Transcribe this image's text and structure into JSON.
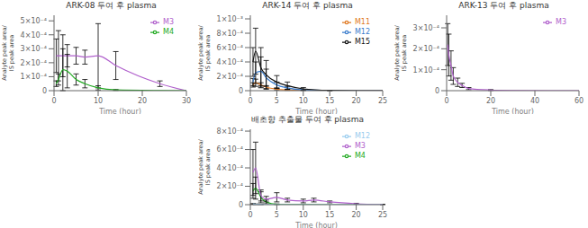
{
  "chart_data": [
    {
      "type": "line",
      "title": "ARK-08 두여 후 plasma",
      "xlabel": "Time (hour)",
      "ylabel": "Analyte peak area/IS peak area",
      "xlim": [
        0,
        30
      ],
      "xticks": [
        0,
        10,
        20,
        30
      ],
      "ylim": [
        0,
        0.00054
      ],
      "yticks": [
        0,
        {
          "value": 0.0001,
          "label": "1×10⁻⁴"
        },
        {
          "value": 0.0002,
          "label": "2×10⁻⁴"
        },
        {
          "value": 0.0003,
          "label": "3×10⁻⁴"
        },
        {
          "value": 0.0004,
          "label": "4×10⁻⁴"
        },
        {
          "value": 0.0005,
          "label": "5×10⁻⁴"
        }
      ],
      "grid": false,
      "legend": "upper right",
      "series": [
        {
          "name": "M3",
          "color": "#b060cc",
          "x": [
            0.5,
            1,
            2,
            3,
            5,
            7,
            10,
            14,
            24,
            30
          ],
          "values": [
            0.00025,
            0.00025,
            0.00025,
            0.00025,
            0.00025,
            0.00024,
            0.00025,
            0.00018,
            5e-05,
            0
          ],
          "errors": [
            0.00012,
            0.00018,
            0.00015,
            8e-05,
            6e-05,
            5e-05,
            0.00023,
            0.0001,
            2e-05,
            0
          ]
        },
        {
          "name": "M4",
          "color": "#22aa22",
          "x": [
            0.5,
            1,
            2,
            3,
            5,
            7,
            10,
            14,
            24,
            30
          ],
          "values": [
            5e-05,
            8e-05,
            0.00015,
            0.00014,
            8e-05,
            5e-05,
            2e-05,
            5e-06,
            1e-06,
            0
          ],
          "errors": [
            2e-05,
            4e-05,
            0.00015,
            0.00012,
            4e-05,
            3e-05,
            1.5e-05,
            3e-06,
            0,
            0
          ]
        }
      ]
    },
    {
      "type": "line",
      "title": "ARK-14 두여 후 plasma",
      "xlabel": "Time (hour)",
      "ylabel": "Analyte peak area/IS peak area",
      "xlim": [
        0,
        25
      ],
      "xticks": [
        0,
        5,
        10,
        15,
        20,
        25
      ],
      "ylim": [
        0,
        0.00105
      ],
      "yticks": [
        0,
        {
          "value": 0.0002,
          "label": "2×10⁻⁴"
        },
        {
          "value": 0.0004,
          "label": "4×10⁻⁴"
        },
        {
          "value": 0.0006,
          "label": "6×10⁻⁴"
        },
        {
          "value": 0.0008,
          "label": "8×10⁻⁴"
        },
        {
          "value": 0.001,
          "label": "1×10⁻³"
        }
      ],
      "grid": false,
      "legend": "upper right",
      "series": [
        {
          "name": "M11",
          "color": "#e07820",
          "x": [
            0.5,
            1,
            2,
            3,
            5,
            7,
            10,
            15,
            20,
            25
          ],
          "values": [
            8e-05,
            0.00011,
            8e-05,
            5e-05,
            2e-05,
            1e-05,
            5e-06,
            1e-06,
            0,
            0
          ],
          "errors": [
            3e-05,
            5e-05,
            3e-05,
            2e-05,
            1e-05,
            5e-06,
            2e-06,
            0,
            0,
            0
          ]
        },
        {
          "name": "M12",
          "color": "#3a7ccc",
          "x": [
            0.5,
            1,
            2,
            3,
            5,
            7,
            10,
            15,
            20,
            25
          ],
          "values": [
            0.00012,
            0.00025,
            0.00027,
            0.00018,
            8e-05,
            4e-05,
            1e-05,
            2e-06,
            0,
            0
          ],
          "errors": [
            5e-05,
            0.00015,
            0.0002,
            0.00012,
            4e-05,
            2e-05,
            5e-06,
            1e-06,
            0,
            0
          ]
        },
        {
          "name": "M15",
          "color": "#111111",
          "x": [
            0.5,
            1,
            2,
            3,
            5,
            7,
            10,
            15,
            20,
            25
          ],
          "values": [
            0.0004,
            0.00055,
            0.00032,
            0.00022,
            0.00012,
            7e-05,
            2.5e-05,
            4e-06,
            0,
            0
          ],
          "errors": [
            0.0002,
            0.00032,
            0.00028,
            0.0002,
            9e-05,
            5e-05,
            1.8e-05,
            2e-06,
            0,
            0
          ]
        }
      ]
    },
    {
      "type": "line",
      "title": "ARK-13 두여 후 plasma",
      "xlabel": "Time (hour)",
      "ylabel": "Analyte peak area/IS peak area",
      "xlim": [
        0,
        60
      ],
      "xticks": [
        0,
        20,
        40,
        60
      ],
      "ylim": [
        0,
        0.00036
      ],
      "yticks": [
        0,
        {
          "value": 0.0001,
          "label": "1×10⁻⁴"
        },
        {
          "value": 0.0002,
          "label": "2×10⁻⁴"
        },
        {
          "value": 0.0003,
          "label": "3×10⁻⁴"
        }
      ],
      "grid": false,
      "legend": "upper right",
      "series": [
        {
          "name": "M3",
          "color": "#b060cc",
          "x": [
            0.5,
            1,
            2,
            3,
            5,
            7,
            10,
            20,
            30,
            48,
            60
          ],
          "values": [
            0.00022,
            0.00017,
            0.00012,
            7e-05,
            4e-05,
            2.5e-05,
            1e-05,
            3e-06,
            1e-06,
            0,
            0
          ],
          "errors": [
            0.0001,
            0.0001,
            7e-05,
            4e-05,
            2e-05,
            1e-05,
            5e-06,
            2e-06,
            0,
            0,
            0
          ]
        }
      ]
    },
    {
      "type": "line",
      "title": "배초향 추출물 두여 후 plasma",
      "xlabel": "Time (hour)",
      "ylabel": "Analyte peak area/IS peak area",
      "xlim": [
        0,
        25
      ],
      "xticks": [
        0,
        5,
        10,
        15,
        20,
        25
      ],
      "ylim": [
        0,
        0.00082
      ],
      "yticks": [
        0,
        {
          "value": 0.0002,
          "label": "2×10⁻⁴"
        },
        {
          "value": 0.0004,
          "label": "4×10⁻⁴"
        },
        {
          "value": 0.0006,
          "label": "6×10⁻⁴"
        },
        {
          "value": 0.0008,
          "label": "8×10⁻⁴"
        }
      ],
      "grid": false,
      "legend": "upper right",
      "series": [
        {
          "name": "M4",
          "color": "#22aa22",
          "x": [
            0.5,
            1,
            2,
            3,
            5,
            10,
            15,
            20,
            25
          ],
          "values": [
            0.00015,
            0.00018,
            8e-05,
            3e-05,
            5e-06,
            1e-06,
            0,
            0,
            0
          ],
          "errors": [
            8e-05,
            0.00012,
            6e-05,
            2e-05,
            3e-06,
            0,
            0,
            0,
            0
          ]
        },
        {
          "name": "M3",
          "color": "#b060cc",
          "x": [
            0.5,
            1,
            2,
            3,
            5,
            7,
            10,
            12,
            15,
            20,
            25
          ],
          "values": [
            0.00035,
            0.0004,
            0.0001,
            6e-05,
            8e-05,
            5e-05,
            4e-05,
            5e-05,
            3e-05,
            1e-05,
            2e-06
          ],
          "errors": [
            0.00025,
            0.00028,
            6e-05,
            3e-05,
            5e-05,
            2e-05,
            2e-05,
            2e-05,
            1e-05,
            5e-06,
            1e-06
          ]
        },
        {
          "name": "M12",
          "color": "#99ccee",
          "x": [
            0.5,
            1,
            2,
            3,
            5,
            10,
            15,
            20,
            25
          ],
          "values": [
            8e-06,
            5e-06,
            3e-06,
            1e-06,
            0,
            0,
            0,
            0,
            0
          ],
          "errors": [
            4e-06,
            3e-06,
            1e-06,
            0,
            0,
            0,
            0,
            0,
            0
          ]
        }
      ]
    }
  ]
}
